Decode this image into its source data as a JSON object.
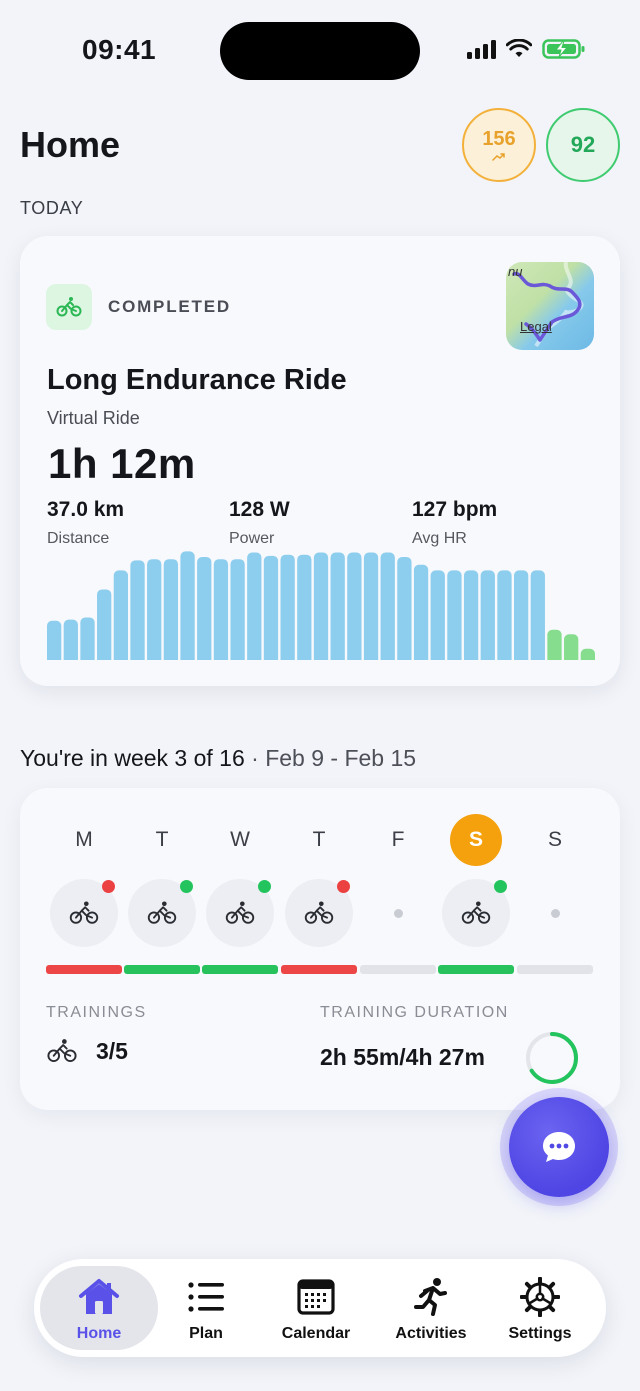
{
  "status_bar": {
    "time": "09:41"
  },
  "header": {
    "title": "Home",
    "fitness_value": "156",
    "form_value": "92"
  },
  "section_today": "TODAY",
  "activity": {
    "status": "COMPLETED",
    "title": "Long Endurance Ride",
    "type": "Virtual Ride",
    "duration": "1h 12m",
    "metrics": [
      {
        "value": "37.0 km",
        "label": "Distance"
      },
      {
        "value": "128 W",
        "label": "Power"
      },
      {
        "value": "127 bpm",
        "label": "Avg HR"
      }
    ],
    "map": {
      "label_partial": "nu",
      "legal": "Legal"
    },
    "power_profile": [
      0.35,
      0.36,
      0.38,
      0.63,
      0.8,
      0.89,
      0.9,
      0.9,
      0.97,
      0.92,
      0.9,
      0.9,
      0.96,
      0.93,
      0.94,
      0.94,
      0.96,
      0.96,
      0.96,
      0.96,
      0.96,
      0.92,
      0.85,
      0.8,
      0.8,
      0.8,
      0.8,
      0.8,
      0.8,
      0.8,
      0.27,
      0.23,
      0.1
    ],
    "power_profile_colors": {
      "main": "#8DCDEE",
      "cooldown": "#86DD8E",
      "cooldown_from_index": 30
    }
  },
  "week": {
    "heading": "You're in week 3 of 16",
    "range": " · Feb 9 - Feb 15",
    "days": [
      {
        "letter": "M",
        "workout": true,
        "status": "missed"
      },
      {
        "letter": "T",
        "workout": true,
        "status": "done"
      },
      {
        "letter": "W",
        "workout": true,
        "status": "done"
      },
      {
        "letter": "T",
        "workout": true,
        "status": "missed"
      },
      {
        "letter": "F",
        "workout": false,
        "status": "rest"
      },
      {
        "letter": "S",
        "workout": true,
        "status": "done",
        "today": true
      },
      {
        "letter": "S",
        "workout": false,
        "status": "rest"
      }
    ],
    "trainings_label": "TRAININGS",
    "trainings_value": "3/5",
    "duration_label": "TRAINING DURATION",
    "duration_value": "2h 55m/4h 27m",
    "duration_progress": 0.66
  },
  "tabs": [
    {
      "label": "Home",
      "icon": "house-icon",
      "active": true
    },
    {
      "label": "Plan",
      "icon": "list-icon"
    },
    {
      "label": "Calendar",
      "icon": "calendar-icon"
    },
    {
      "label": "Activities",
      "icon": "runner-icon"
    },
    {
      "label": "Settings",
      "icon": "gear-icon"
    }
  ],
  "colors": {
    "accent": "#5A52E8",
    "today": "#F5A10D",
    "done": "#23C45E",
    "missed": "#EC4141",
    "fitness": "#E8A12A",
    "form": "#23A85A"
  }
}
